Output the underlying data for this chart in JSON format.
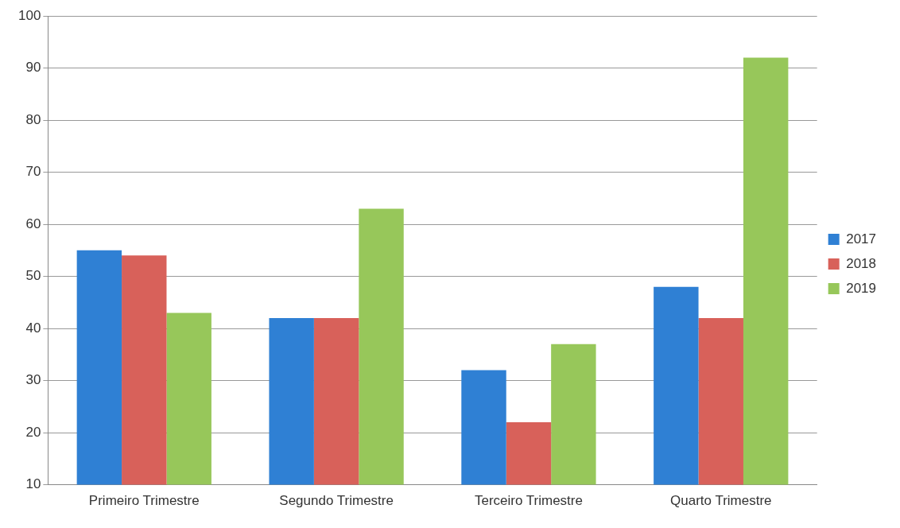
{
  "chart_data": {
    "type": "bar",
    "categories": [
      "Primeiro Trimestre",
      "Segundo Trimestre",
      "Terceiro Trimestre",
      "Quarto Trimestre"
    ],
    "series": [
      {
        "name": "2017",
        "color": "#2f80d4",
        "values": [
          55,
          42,
          32,
          48
        ]
      },
      {
        "name": "2018",
        "color": "#d8615a",
        "values": [
          54,
          42,
          22,
          42
        ]
      },
      {
        "name": "2019",
        "color": "#97c75a",
        "values": [
          43,
          63,
          37,
          92
        ]
      }
    ],
    "ylim": [
      10,
      100
    ],
    "yticks": [
      10,
      20,
      30,
      40,
      50,
      60,
      70,
      80,
      90,
      100
    ],
    "grid": "y",
    "legend": "right"
  }
}
